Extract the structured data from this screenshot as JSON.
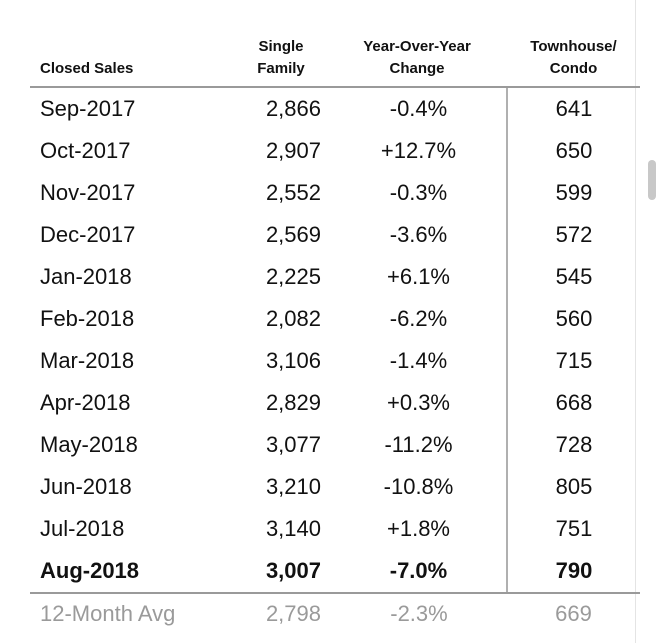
{
  "chart_data": {
    "type": "table",
    "columns": [
      {
        "line1": "Closed Sales",
        "line2": ""
      },
      {
        "line1": "Single",
        "line2": "Family"
      },
      {
        "line1": "Year-Over-Year",
        "line2": "Change"
      },
      {
        "line1": "Townhouse/",
        "line2": "Condo"
      }
    ],
    "rows": [
      {
        "month": "Sep-2017",
        "single_family": "2,866",
        "yoy_change": "-0.4%",
        "townhouse_condo": "641"
      },
      {
        "month": "Oct-2017",
        "single_family": "2,907",
        "yoy_change": "+12.7%",
        "townhouse_condo": "650"
      },
      {
        "month": "Nov-2017",
        "single_family": "2,552",
        "yoy_change": "-0.3%",
        "townhouse_condo": "599"
      },
      {
        "month": "Dec-2017",
        "single_family": "2,569",
        "yoy_change": "-3.6%",
        "townhouse_condo": "572"
      },
      {
        "month": "Jan-2018",
        "single_family": "2,225",
        "yoy_change": "+6.1%",
        "townhouse_condo": "545"
      },
      {
        "month": "Feb-2018",
        "single_family": "2,082",
        "yoy_change": "-6.2%",
        "townhouse_condo": "560"
      },
      {
        "month": "Mar-2018",
        "single_family": "3,106",
        "yoy_change": "-1.4%",
        "townhouse_condo": "715"
      },
      {
        "month": "Apr-2018",
        "single_family": "2,829",
        "yoy_change": "+0.3%",
        "townhouse_condo": "668"
      },
      {
        "month": "May-2018",
        "single_family": "3,077",
        "yoy_change": "-11.2%",
        "townhouse_condo": "728"
      },
      {
        "month": "Jun-2018",
        "single_family": "3,210",
        "yoy_change": "-10.8%",
        "townhouse_condo": "805"
      },
      {
        "month": "Jul-2018",
        "single_family": "3,140",
        "yoy_change": "+1.8%",
        "townhouse_condo": "751"
      },
      {
        "month": "Aug-2018",
        "single_family": "3,007",
        "yoy_change": "-7.0%",
        "townhouse_condo": "790"
      }
    ],
    "average": {
      "label": "12-Month Avg",
      "single_family": "2,798",
      "yoy_change": "-2.3%",
      "townhouse_condo": "669"
    },
    "highlighted_row": "Aug-2018"
  }
}
